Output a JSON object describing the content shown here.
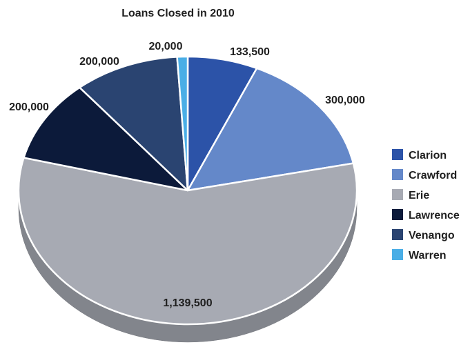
{
  "chart_data": {
    "type": "pie",
    "title": "Loans Closed in 2010",
    "categories": [
      "Clarion",
      "Crawford",
      "Erie",
      "Lawrence",
      "Venango",
      "Warren"
    ],
    "values": [
      133500,
      300000,
      1139500,
      200000,
      200000,
      20000
    ],
    "value_labels": [
      "133,500",
      "300,000",
      "1,139,500",
      "200,000",
      "200,000",
      "20,000"
    ],
    "colors": [
      "#2c53a8",
      "#6488c9",
      "#a7aab3",
      "#0c1a3a",
      "#2a4471",
      "#4aaee6"
    ],
    "style": "3d",
    "legend": "right"
  }
}
